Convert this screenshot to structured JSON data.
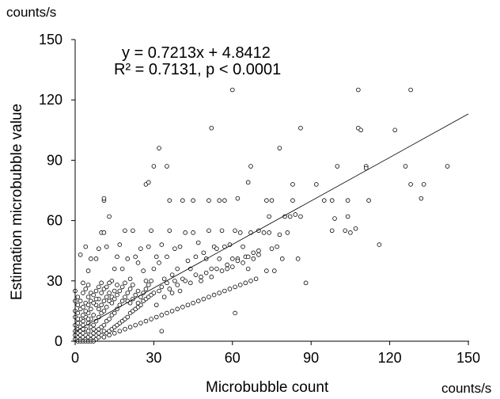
{
  "chart_data": {
    "type": "scatter",
    "title": "",
    "xlabel": "Microbubble count",
    "ylabel": "Estimation microbubble value",
    "x_unit": "counts/s",
    "y_unit": "counts/s",
    "xlim": [
      0,
      150
    ],
    "ylim": [
      0,
      150
    ],
    "xticks": [
      "0",
      "30",
      "60",
      "90",
      "120",
      "150"
    ],
    "yticks": [
      "0",
      "30",
      "60",
      "90",
      "120",
      "150"
    ],
    "grid": false,
    "legend": "none",
    "marker": "open-circle",
    "regression": {
      "slope": 0.7213,
      "intercept": 4.8412,
      "equation_text": "y = 0.7213x + 4.8412",
      "stats_text": "R² = 0.7131, p < 0.0001"
    },
    "points": [
      [
        60,
        125
      ],
      [
        108,
        125
      ],
      [
        128,
        125
      ],
      [
        32,
        96
      ],
      [
        52,
        106
      ],
      [
        78,
        96
      ],
      [
        86,
        106
      ],
      [
        108,
        106
      ],
      [
        109,
        105
      ],
      [
        122,
        105
      ],
      [
        35,
        87
      ],
      [
        142,
        87
      ],
      [
        11,
        70
      ],
      [
        11,
        71
      ],
      [
        27,
        78
      ],
      [
        28,
        79
      ],
      [
        30,
        87
      ],
      [
        36,
        70
      ],
      [
        41,
        70
      ],
      [
        45,
        70
      ],
      [
        51,
        70
      ],
      [
        55,
        70
      ],
      [
        57,
        70
      ],
      [
        62,
        71
      ],
      [
        66,
        79
      ],
      [
        67,
        87
      ],
      [
        73,
        70
      ],
      [
        74,
        62
      ],
      [
        75,
        70
      ],
      [
        83,
        78
      ],
      [
        86,
        62
      ],
      [
        92,
        78
      ],
      [
        95,
        70
      ],
      [
        98,
        70
      ],
      [
        100,
        87
      ],
      [
        104,
        70
      ],
      [
        111,
        87
      ],
      [
        112,
        70
      ],
      [
        126,
        87
      ],
      [
        128,
        78
      ],
      [
        132,
        71
      ],
      [
        133,
        78
      ],
      [
        111,
        86
      ],
      [
        2,
        43
      ],
      [
        3,
        29
      ],
      [
        4,
        47
      ],
      [
        5,
        35
      ],
      [
        6,
        41
      ],
      [
        8,
        41
      ],
      [
        9,
        46
      ],
      [
        10,
        54
      ],
      [
        11,
        54
      ],
      [
        12,
        47
      ],
      [
        13,
        62
      ],
      [
        14,
        30
      ],
      [
        15,
        36
      ],
      [
        16,
        42
      ],
      [
        17,
        48
      ],
      [
        18,
        36
      ],
      [
        19,
        55
      ],
      [
        20,
        41
      ],
      [
        21,
        31
      ],
      [
        22,
        55
      ],
      [
        23,
        42
      ],
      [
        24,
        39
      ],
      [
        25,
        46
      ],
      [
        26,
        35
      ],
      [
        27,
        30
      ],
      [
        28,
        47
      ],
      [
        29,
        55
      ],
      [
        30,
        36
      ],
      [
        31,
        42
      ],
      [
        32,
        39
      ],
      [
        33,
        48
      ],
      [
        34,
        31
      ],
      [
        35,
        42
      ],
      [
        36,
        55
      ],
      [
        37,
        33
      ],
      [
        38,
        46
      ],
      [
        39,
        36
      ],
      [
        40,
        47
      ],
      [
        41,
        31
      ],
      [
        42,
        54
      ],
      [
        43,
        40
      ],
      [
        44,
        36
      ],
      [
        45,
        54
      ],
      [
        46,
        42
      ],
      [
        47,
        49
      ],
      [
        48,
        32
      ],
      [
        49,
        44
      ],
      [
        50,
        41
      ],
      [
        51,
        55
      ],
      [
        52,
        36
      ],
      [
        53,
        47
      ],
      [
        54,
        46
      ],
      [
        55,
        41
      ],
      [
        56,
        55
      ],
      [
        57,
        47
      ],
      [
        58,
        36
      ],
      [
        59,
        48
      ],
      [
        60,
        41
      ],
      [
        61,
        55
      ],
      [
        62,
        41
      ],
      [
        63,
        54
      ],
      [
        64,
        47
      ],
      [
        65,
        42
      ],
      [
        66,
        36
      ],
      [
        67,
        54
      ],
      [
        68,
        41
      ],
      [
        70,
        45
      ],
      [
        72,
        54
      ],
      [
        73,
        35
      ],
      [
        74,
        54
      ],
      [
        75,
        46
      ],
      [
        76,
        35
      ],
      [
        77,
        47
      ],
      [
        78,
        53
      ],
      [
        79,
        41
      ],
      [
        80,
        62
      ],
      [
        81,
        54
      ],
      [
        82,
        62
      ],
      [
        83,
        70
      ],
      [
        84,
        63
      ],
      [
        85,
        41
      ],
      [
        88,
        29
      ],
      [
        98,
        55
      ],
      [
        103,
        55
      ],
      [
        104,
        62
      ],
      [
        105,
        54
      ],
      [
        107,
        56
      ],
      [
        116,
        48
      ],
      [
        61,
        14
      ],
      [
        33,
        5
      ],
      [
        99,
        61
      ],
      [
        70,
        55
      ],
      [
        1,
        2
      ],
      [
        1,
        4
      ],
      [
        1,
        6
      ],
      [
        2,
        1
      ],
      [
        2,
        3
      ],
      [
        2,
        5
      ],
      [
        2,
        7
      ],
      [
        3,
        2
      ],
      [
        3,
        4
      ],
      [
        3,
        8
      ],
      [
        3,
        10
      ],
      [
        4,
        1
      ],
      [
        4,
        3
      ],
      [
        4,
        6
      ],
      [
        4,
        12
      ],
      [
        5,
        2
      ],
      [
        5,
        5
      ],
      [
        5,
        9
      ],
      [
        5,
        14
      ],
      [
        6,
        1
      ],
      [
        6,
        3
      ],
      [
        6,
        7
      ],
      [
        6,
        11
      ],
      [
        6,
        16
      ],
      [
        7,
        2
      ],
      [
        7,
        4
      ],
      [
        7,
        8
      ],
      [
        7,
        13
      ],
      [
        8,
        1
      ],
      [
        8,
        5
      ],
      [
        8,
        10
      ],
      [
        8,
        18
      ],
      [
        9,
        2
      ],
      [
        9,
        6
      ],
      [
        9,
        12
      ],
      [
        9,
        21
      ],
      [
        10,
        3
      ],
      [
        10,
        7
      ],
      [
        10,
        14
      ],
      [
        10,
        24
      ],
      [
        11,
        2
      ],
      [
        11,
        8
      ],
      [
        11,
        15
      ],
      [
        11,
        26
      ],
      [
        12,
        4
      ],
      [
        12,
        10
      ],
      [
        12,
        17
      ],
      [
        13,
        5
      ],
      [
        13,
        11
      ],
      [
        13,
        20
      ],
      [
        14,
        6
      ],
      [
        14,
        13
      ],
      [
        14,
        22
      ],
      [
        15,
        7
      ],
      [
        15,
        14
      ],
      [
        15,
        25
      ],
      [
        16,
        8
      ],
      [
        16,
        16
      ],
      [
        16,
        28
      ],
      [
        17,
        9
      ],
      [
        17,
        18
      ],
      [
        18,
        10
      ],
      [
        18,
        20
      ],
      [
        19,
        11
      ],
      [
        19,
        22
      ],
      [
        20,
        12
      ],
      [
        20,
        24
      ],
      [
        21,
        14
      ],
      [
        21,
        26
      ],
      [
        22,
        15
      ],
      [
        22,
        28
      ],
      [
        23,
        16
      ],
      [
        24,
        17
      ],
      [
        24,
        25
      ],
      [
        25,
        18
      ],
      [
        26,
        20
      ],
      [
        27,
        21
      ],
      [
        28,
        22
      ],
      [
        29,
        23
      ],
      [
        30,
        24
      ],
      [
        31,
        18
      ],
      [
        32,
        25
      ],
      [
        33,
        27
      ],
      [
        34,
        22
      ],
      [
        35,
        29
      ],
      [
        36,
        26
      ],
      [
        37,
        24
      ],
      [
        38,
        30
      ],
      [
        39,
        28
      ],
      [
        40,
        25
      ],
      [
        42,
        30
      ],
      [
        44,
        29
      ],
      [
        46,
        33
      ],
      [
        48,
        30
      ],
      [
        50,
        34
      ],
      [
        52,
        32
      ],
      [
        54,
        36
      ],
      [
        56,
        35
      ],
      [
        58,
        38
      ],
      [
        60,
        37
      ],
      [
        62,
        40
      ],
      [
        64,
        39
      ],
      [
        66,
        42
      ],
      [
        68,
        44
      ],
      [
        70,
        43
      ],
      [
        0,
        1
      ],
      [
        0,
        3
      ],
      [
        0,
        5
      ],
      [
        0,
        8
      ],
      [
        0,
        12
      ],
      [
        0,
        15
      ],
      [
        0,
        20
      ],
      [
        0,
        25
      ],
      [
        1,
        9
      ],
      [
        1,
        14
      ],
      [
        1,
        18
      ],
      [
        1,
        22
      ],
      [
        2,
        11
      ],
      [
        2,
        16
      ],
      [
        2,
        20
      ],
      [
        3,
        13
      ],
      [
        3,
        17
      ],
      [
        3,
        24
      ],
      [
        4,
        15
      ],
      [
        4,
        19
      ],
      [
        4,
        26
      ],
      [
        5,
        18
      ],
      [
        5,
        22
      ],
      [
        5,
        28
      ],
      [
        6,
        20
      ],
      [
        6,
        24
      ],
      [
        7,
        19
      ],
      [
        7,
        23
      ],
      [
        8,
        21
      ],
      [
        8,
        25
      ],
      [
        9,
        16
      ],
      [
        9,
        27
      ],
      [
        10,
        18
      ],
      [
        10,
        29
      ],
      [
        11,
        20
      ],
      [
        12,
        22
      ],
      [
        12,
        27
      ],
      [
        13,
        24
      ],
      [
        13,
        29
      ],
      [
        14,
        19
      ],
      [
        15,
        21
      ],
      [
        16,
        23
      ],
      [
        17,
        25
      ],
      [
        18,
        27
      ],
      [
        19,
        29
      ],
      [
        20,
        20
      ],
      [
        21,
        19
      ],
      [
        22,
        21
      ],
      [
        23,
        23
      ],
      [
        24,
        19
      ],
      [
        25,
        22
      ],
      [
        26,
        24
      ],
      [
        27,
        26
      ],
      [
        28,
        28
      ],
      [
        29,
        30
      ],
      [
        1,
        0
      ],
      [
        2,
        0
      ],
      [
        3,
        0
      ],
      [
        4,
        0
      ],
      [
        5,
        0
      ],
      [
        6,
        0
      ],
      [
        7,
        0
      ],
      [
        1,
        11
      ],
      [
        3,
        6
      ],
      [
        5,
        11
      ],
      [
        7,
        6
      ],
      [
        9,
        4
      ],
      [
        11,
        5
      ],
      [
        13,
        3
      ],
      [
        15,
        4
      ],
      [
        17,
        5
      ],
      [
        19,
        6
      ],
      [
        21,
        7
      ],
      [
        23,
        8
      ],
      [
        25,
        9
      ],
      [
        27,
        10
      ],
      [
        29,
        11
      ],
      [
        31,
        12
      ],
      [
        33,
        13
      ],
      [
        35,
        14
      ],
      [
        37,
        15
      ],
      [
        39,
        16
      ],
      [
        41,
        17
      ],
      [
        43,
        18
      ],
      [
        45,
        19
      ],
      [
        47,
        20
      ],
      [
        49,
        21
      ],
      [
        51,
        22
      ],
      [
        53,
        23
      ],
      [
        55,
        24
      ],
      [
        57,
        25
      ],
      [
        59,
        26
      ],
      [
        61,
        27
      ],
      [
        63,
        28
      ],
      [
        65,
        29
      ],
      [
        67,
        30
      ],
      [
        69,
        31
      ]
    ]
  }
}
